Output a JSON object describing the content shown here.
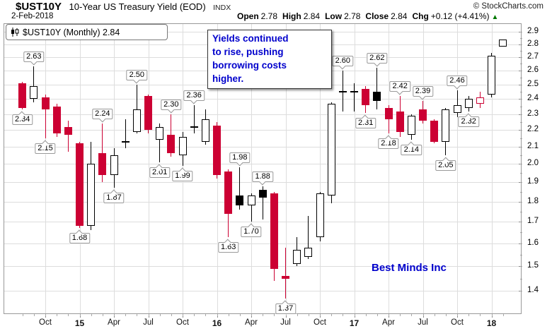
{
  "header": {
    "symbol": "$UST10Y",
    "name": "10-Year US Treasury Yield (EOD)",
    "exchange": "INDX",
    "copyright": "© StockCharts.com",
    "date": "2-Feb-2018",
    "quote": [
      {
        "label": "Open",
        "value": "2.78"
      },
      {
        "label": "High",
        "value": "2.84"
      },
      {
        "label": "Low",
        "value": "2.78"
      },
      {
        "label": "Close",
        "value": "2.84"
      },
      {
        "label": "Chg",
        "value": "+0.12 (+4.41%)"
      }
    ],
    "change_direction": "up",
    "up_arrow": "▲"
  },
  "legend": {
    "text": "$UST10Y (Monthly) 2.84"
  },
  "annotation": {
    "lines": [
      "Yields continued",
      "to rise, pushing",
      "borrowing costs",
      "higher."
    ]
  },
  "watermark": {
    "text": "Best Minds Inc"
  },
  "colors": {
    "down_red": "#cc0033",
    "up_black": "#000000",
    "grid": "#dddddd",
    "frame": "#999999",
    "annotation_blue": "#0000cc",
    "change_green": "#007700"
  },
  "chart_data": {
    "type": "candlestick",
    "title": "$UST10Y (Monthly)",
    "last_value": 2.84,
    "scale": "log",
    "grid": true,
    "ylim": [
      1.312,
      2.97
    ],
    "y_ticks": [
      2.9,
      2.8,
      2.7,
      2.6,
      2.5,
      2.4,
      2.3,
      2.2,
      2.1,
      2.0,
      1.9,
      1.8,
      1.7,
      1.6,
      1.5,
      1.4
    ],
    "x_ticks": [
      {
        "label": "Oct",
        "m": 2
      },
      {
        "label": "15",
        "m": 5,
        "bold": true
      },
      {
        "label": "Apr",
        "m": 8
      },
      {
        "label": "Jul",
        "m": 11
      },
      {
        "label": "Oct",
        "m": 14
      },
      {
        "label": "16",
        "m": 17,
        "bold": true
      },
      {
        "label": "Apr",
        "m": 20
      },
      {
        "label": "Jul",
        "m": 23
      },
      {
        "label": "Oct",
        "m": 26
      },
      {
        "label": "17",
        "m": 29,
        "bold": true
      },
      {
        "label": "Apr",
        "m": 32
      },
      {
        "label": "Jul",
        "m": 35
      },
      {
        "label": "Oct",
        "m": 38
      },
      {
        "label": "18",
        "m": 41,
        "bold": true
      }
    ],
    "candles": [
      {
        "date": "Aug-2014",
        "o": 2.51,
        "h": 2.52,
        "l": 2.33,
        "c": 2.34,
        "type": "red",
        "label": "2.34",
        "label_pos": "below"
      },
      {
        "date": "Sep-2014",
        "o": 2.4,
        "h": 2.63,
        "l": 2.38,
        "c": 2.49,
        "type": "white",
        "label": "2.63",
        "label_pos": "above"
      },
      {
        "date": "Oct-2014",
        "o": 2.41,
        "h": 2.43,
        "l": 2.15,
        "c": 2.33,
        "type": "red",
        "label": "2.15",
        "label_pos": "below"
      },
      {
        "date": "Nov-2014",
        "o": 2.35,
        "h": 2.37,
        "l": 2.16,
        "c": 2.18,
        "type": "red"
      },
      {
        "date": "Dec-2014",
        "o": 2.22,
        "h": 2.26,
        "l": 2.07,
        "c": 2.17,
        "type": "red"
      },
      {
        "date": "Jan-2015",
        "o": 2.12,
        "h": 2.13,
        "l": 1.67,
        "c": 1.68,
        "type": "red",
        "label": "1.68",
        "label_pos": "below"
      },
      {
        "date": "Feb-2015",
        "o": 1.68,
        "h": 2.13,
        "l": 1.66,
        "c": 2.0,
        "type": "white"
      },
      {
        "date": "Mar-2015",
        "o": 2.06,
        "h": 2.24,
        "l": 1.9,
        "c": 1.94,
        "type": "red",
        "label": "2.24",
        "label_pos": "above"
      },
      {
        "date": "Apr-2015",
        "o": 1.94,
        "h": 2.09,
        "l": 1.87,
        "c": 2.05,
        "type": "white",
        "label": "1.87",
        "label_pos": "below"
      },
      {
        "date": "May-2015",
        "o": 2.12,
        "h": 2.27,
        "l": 2.09,
        "c": 2.13,
        "type": "black"
      },
      {
        "date": "Jun-2015",
        "o": 2.19,
        "h": 2.5,
        "l": 2.18,
        "c": 2.33,
        "type": "white",
        "label": "2.50",
        "label_pos": "above"
      },
      {
        "date": "Jul-2015",
        "o": 2.42,
        "h": 2.43,
        "l": 2.18,
        "c": 2.2,
        "type": "red"
      },
      {
        "date": "Aug-2015",
        "o": 2.14,
        "h": 2.24,
        "l": 2.01,
        "c": 2.22,
        "type": "white",
        "label": "2.01",
        "label_pos": "below"
      },
      {
        "date": "Sep-2015",
        "o": 2.17,
        "h": 2.3,
        "l": 2.04,
        "c": 2.06,
        "type": "red",
        "label": "2.30",
        "label_pos": "above"
      },
      {
        "date": "Oct-2015",
        "o": 2.05,
        "h": 2.19,
        "l": 1.99,
        "c": 2.16,
        "type": "white",
        "label": "1.99",
        "label_pos": "below"
      },
      {
        "date": "Nov-2015",
        "o": 2.21,
        "h": 2.36,
        "l": 2.18,
        "c": 2.22,
        "type": "black",
        "label": "2.36",
        "label_pos": "above"
      },
      {
        "date": "Dec-2015",
        "o": 2.13,
        "h": 2.33,
        "l": 2.11,
        "c": 2.27,
        "type": "white"
      },
      {
        "date": "Jan-2016",
        "o": 2.23,
        "h": 2.25,
        "l": 1.92,
        "c": 1.94,
        "type": "red"
      },
      {
        "date": "Feb-2016",
        "o": 1.96,
        "h": 1.97,
        "l": 1.63,
        "c": 1.74,
        "type": "red",
        "label": "1.63",
        "label_pos": "below"
      },
      {
        "date": "Mar-2016",
        "o": 1.83,
        "h": 1.98,
        "l": 1.76,
        "c": 1.78,
        "type": "black",
        "label": "1.98",
        "label_pos": "above"
      },
      {
        "date": "Apr-2016",
        "o": 1.78,
        "h": 1.84,
        "l": 1.7,
        "c": 1.83,
        "type": "white",
        "label": "1.70",
        "label_pos": "below"
      },
      {
        "date": "May-2016",
        "o": 1.86,
        "h": 1.88,
        "l": 1.71,
        "c": 1.82,
        "type": "black",
        "label": "1.88",
        "label_pos": "above"
      },
      {
        "date": "Jun-2016",
        "o": 1.84,
        "h": 1.85,
        "l": 1.44,
        "c": 1.49,
        "type": "red"
      },
      {
        "date": "Jul-2016",
        "o": 1.45,
        "h": 1.58,
        "l": 1.37,
        "c": 1.46,
        "type": "red",
        "label": "1.37",
        "label_pos": "below"
      },
      {
        "date": "Aug-2016",
        "o": 1.51,
        "h": 1.63,
        "l": 1.5,
        "c": 1.57,
        "type": "white"
      },
      {
        "date": "Sep-2016",
        "o": 1.54,
        "h": 1.73,
        "l": 1.53,
        "c": 1.58,
        "type": "white"
      },
      {
        "date": "Oct-2016",
        "o": 1.63,
        "h": 1.85,
        "l": 1.61,
        "c": 1.84,
        "type": "white"
      },
      {
        "date": "Nov-2016",
        "o": 1.83,
        "h": 2.38,
        "l": 1.79,
        "c": 2.37,
        "type": "white"
      },
      {
        "date": "Dec-2016",
        "o": 2.44,
        "h": 2.6,
        "l": 2.32,
        "c": 2.45,
        "type": "black",
        "label": "2.60",
        "label_pos": "above"
      },
      {
        "date": "Jan-2017",
        "o": 2.44,
        "h": 2.51,
        "l": 2.32,
        "c": 2.45,
        "type": "black"
      },
      {
        "date": "Feb-2017",
        "o": 2.47,
        "h": 2.49,
        "l": 2.31,
        "c": 2.36,
        "type": "red",
        "label": "2.31",
        "label_pos": "below"
      },
      {
        "date": "Mar-2017",
        "o": 2.45,
        "h": 2.62,
        "l": 2.33,
        "c": 2.39,
        "type": "black",
        "label": "2.62",
        "label_pos": "above"
      },
      {
        "date": "Apr-2017",
        "o": 2.34,
        "h": 2.36,
        "l": 2.18,
        "c": 2.27,
        "type": "red",
        "label": "2.18",
        "label_pos": "below"
      },
      {
        "date": "May-2017",
        "o": 2.32,
        "h": 2.42,
        "l": 2.16,
        "c": 2.19,
        "type": "red",
        "label": "2.42",
        "label_pos": "above"
      },
      {
        "date": "Jun-2017",
        "o": 2.17,
        "h": 2.3,
        "l": 2.14,
        "c": 2.29,
        "type": "white",
        "label": "2.14",
        "label_pos": "below"
      },
      {
        "date": "Jul-2017",
        "o": 2.33,
        "h": 2.39,
        "l": 2.24,
        "c": 2.26,
        "type": "red",
        "label": "2.39",
        "label_pos": "above"
      },
      {
        "date": "Aug-2017",
        "o": 2.26,
        "h": 2.27,
        "l": 2.12,
        "c": 2.13,
        "type": "red"
      },
      {
        "date": "Sep-2017",
        "o": 2.13,
        "h": 2.34,
        "l": 2.05,
        "c": 2.33,
        "type": "white",
        "label": "2.05",
        "label_pos": "below"
      },
      {
        "date": "Oct-2017",
        "o": 2.31,
        "h": 2.46,
        "l": 2.28,
        "c": 2.36,
        "type": "white",
        "label": "2.46",
        "label_pos": "above"
      },
      {
        "date": "Nov-2017",
        "o": 2.34,
        "h": 2.42,
        "l": 2.32,
        "c": 2.4,
        "type": "white",
        "label": "2.32",
        "label_pos": "below"
      },
      {
        "date": "Dec-2017",
        "o": 2.37,
        "h": 2.45,
        "l": 2.34,
        "c": 2.41,
        "type": "red-hollow"
      },
      {
        "date": "Jan-2018",
        "o": 2.43,
        "h": 2.73,
        "l": 2.41,
        "c": 2.71,
        "type": "white"
      },
      {
        "date": "Feb-2018",
        "o": 2.78,
        "h": 2.84,
        "l": 2.78,
        "c": 2.84,
        "type": "white"
      }
    ]
  }
}
